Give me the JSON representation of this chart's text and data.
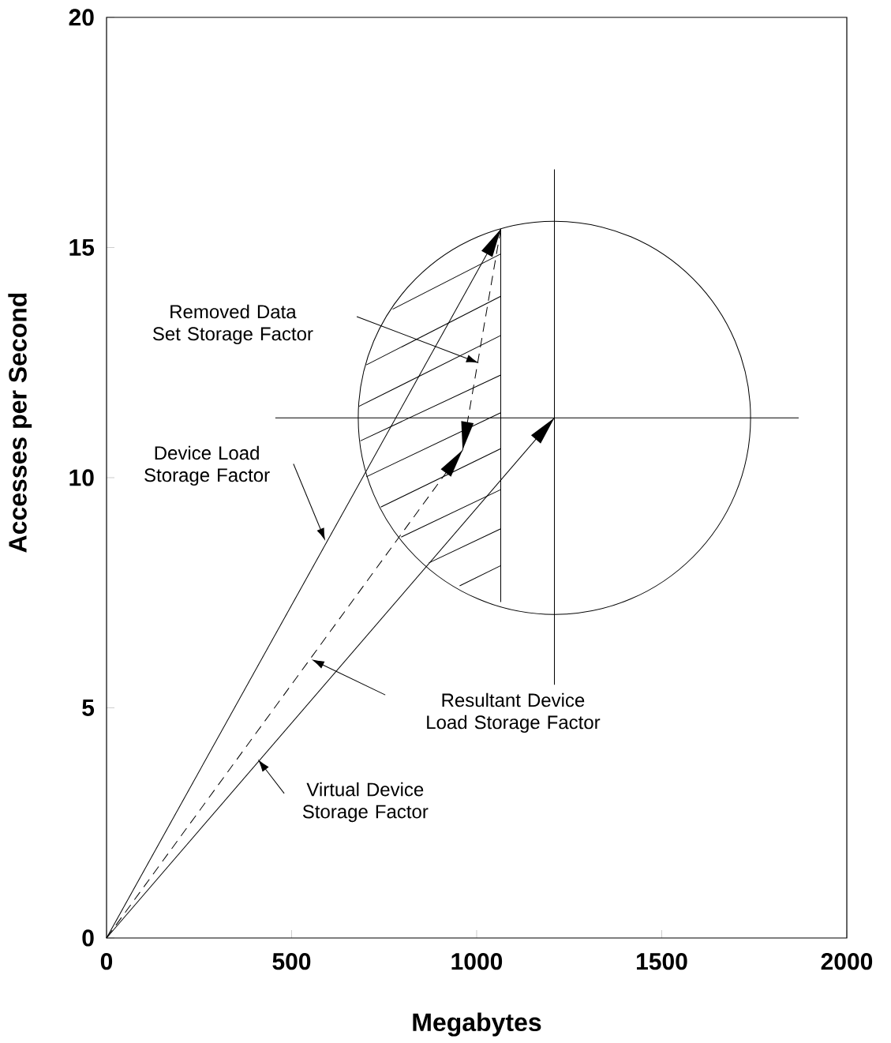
{
  "chart_data": {
    "type": "line",
    "xlabel": "Megabytes",
    "ylabel": "Accesses per Second",
    "xlim": [
      0,
      2000
    ],
    "ylim": [
      0,
      20
    ],
    "xticks": [
      0,
      500,
      1000,
      1500,
      2000
    ],
    "yticks": [
      0,
      5,
      10,
      15,
      20
    ],
    "marker": "none",
    "series": [
      {
        "color": "#000000",
        "line_style": "solid",
        "x": [
          0,
          1065
        ],
        "values": [
          0,
          15.4
        ]
      },
      {
        "color": "#000000",
        "line_style": "dashed",
        "x": [
          0,
          962
        ],
        "values": [
          0,
          10.6
        ]
      },
      {
        "color": "#000000",
        "line_style": "dashed",
        "x": [
          1065,
          962
        ],
        "values": [
          15.4,
          10.6
        ]
      },
      {
        "color": "#000000",
        "line_style": "solid",
        "x": [
          0,
          1210
        ],
        "values": [
          0,
          11.3
        ]
      },
      {
        "color": "#000000",
        "line_style": "solid",
        "x": [
          456,
          1870
        ],
        "values": [
          11.3,
          11.3
        ]
      },
      {
        "color": "#000000",
        "line_style": "solid",
        "x": [
          1210,
          1210
        ],
        "values": [
          5.5,
          16.7
        ]
      },
      {
        "color": "#000000",
        "line_style": "solid",
        "x": [
          1065,
          1065
        ],
        "values": [
          7.3,
          15.4
        ]
      },
      {
        "color": "#000000",
        "line_style": "solid",
        "x": [
          773,
          1065
        ],
        "values": [
          13.66,
          14.86
        ]
      },
      {
        "color": "#000000",
        "line_style": "solid",
        "x": [
          702,
          1065
        ],
        "values": [
          12.45,
          13.94
        ]
      },
      {
        "color": "#000000",
        "line_style": "solid",
        "x": [
          682,
          1065
        ],
        "values": [
          11.55,
          13.09
        ]
      },
      {
        "color": "#000000",
        "line_style": "solid",
        "x": [
          686,
          1065
        ],
        "values": [
          10.8,
          12.23
        ]
      },
      {
        "color": "#000000",
        "line_style": "solid",
        "x": [
          702,
          1065
        ],
        "values": [
          10.02,
          11.41
        ]
      },
      {
        "color": "#000000",
        "line_style": "solid",
        "x": [
          741,
          1065
        ],
        "values": [
          9.36,
          10.63
        ]
      },
      {
        "color": "#000000",
        "line_style": "solid",
        "x": [
          796,
          1065
        ],
        "values": [
          8.71,
          9.74
        ]
      },
      {
        "color": "#000000",
        "line_style": "solid",
        "x": [
          871,
          1065
        ],
        "values": [
          8.15,
          8.89
        ]
      },
      {
        "color": "#000000",
        "line_style": "solid",
        "x": [
          954,
          1065
        ],
        "values": [
          7.65,
          8.09
        ]
      }
    ],
    "annotations": [
      "Removed Data Set Storage Factor",
      "Device Load Storage Factor",
      "Resultant Device Load Storage Factor",
      "Virtual Device Storage Factor"
    ]
  }
}
